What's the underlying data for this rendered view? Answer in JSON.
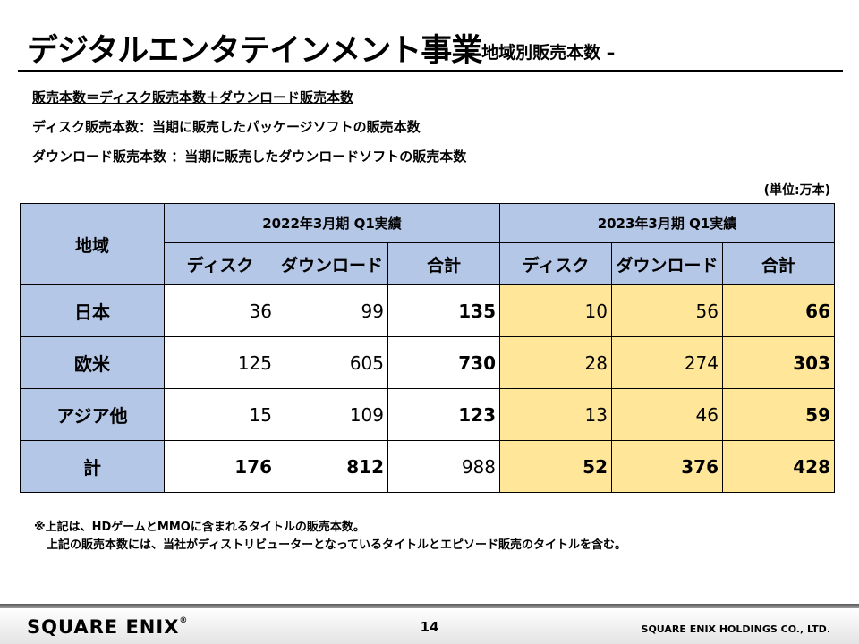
{
  "header": {
    "title": "デジタルエンタテインメント事業",
    "subtitle": "– 地域別販売本数 –"
  },
  "definitions": [
    "販売本数＝ディスク販売本数＋ダウンロード販売本数",
    "ディスク販売本数：当期に販売したパッケージソフトの販売本数",
    "ダウンロード販売本数 ：当期に販売したダウンロードソフトの販売本数"
  ],
  "unit_label": "(単位:万本)",
  "table": {
    "region_header": "地域",
    "periods": [
      "2022年3月期 Q1実績",
      "2023年3月期 Q1実績"
    ],
    "sub_headers": [
      "ディスク",
      "ダウンロード",
      "合計",
      "ディスク",
      "ダウンロード",
      "合計"
    ],
    "rows": [
      {
        "region": "日本",
        "values": [
          "36",
          "99",
          "135",
          "10",
          "56",
          "66"
        ]
      },
      {
        "region": "欧米",
        "values": [
          "125",
          "605",
          "730",
          "28",
          "274",
          "303"
        ]
      },
      {
        "region": "アジア他",
        "values": [
          "15",
          "109",
          "123",
          "13",
          "46",
          "59"
        ]
      },
      {
        "region": "計",
        "values": [
          "176",
          "812",
          "988",
          "52",
          "376",
          "428"
        ]
      }
    ]
  },
  "notes": [
    "※上記は、HDゲームとMMOに含まれるタイトルの販売本数。",
    "上記の販売本数には、当社がディストリビューターとなっているタイトルとエピソード販売のタイトルを含む。"
  ],
  "footer": {
    "logo": "SQUARE ENIX",
    "logo_mark": "®",
    "page_number": "14",
    "company": "SQUARE ENIX HOLDINGS CO., LTD."
  },
  "colors": {
    "header_blue": "#b4c7e7",
    "highlight_yellow": "#ffe699"
  }
}
